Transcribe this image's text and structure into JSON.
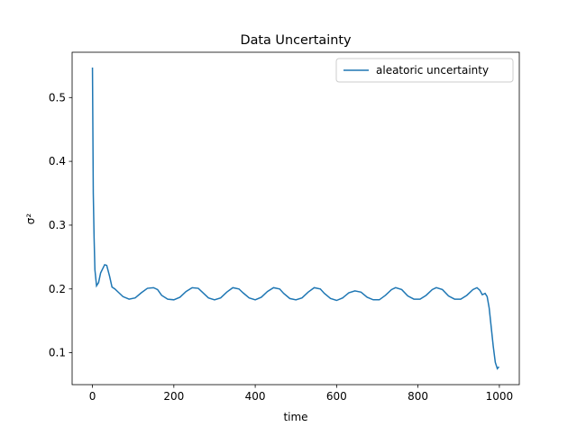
{
  "chart_data": {
    "type": "line",
    "title": "Data Uncertainty",
    "xlabel": "time",
    "ylabel": "σ²",
    "x": [
      0,
      2,
      4,
      6,
      10,
      15,
      20,
      30,
      35,
      42,
      48,
      55,
      65,
      75,
      90,
      105,
      120,
      135,
      150,
      160,
      170,
      185,
      200,
      215,
      230,
      245,
      260,
      270,
      285,
      300,
      315,
      330,
      345,
      360,
      370,
      385,
      400,
      415,
      430,
      445,
      460,
      470,
      485,
      500,
      515,
      530,
      545,
      560,
      570,
      585,
      600,
      615,
      630,
      645,
      660,
      675,
      690,
      705,
      720,
      735,
      745,
      760,
      775,
      790,
      805,
      820,
      835,
      845,
      860,
      875,
      890,
      905,
      920,
      935,
      945,
      952,
      958,
      965,
      970,
      975,
      980,
      985,
      990,
      995,
      999
    ],
    "series": [
      {
        "name": "aleatoric uncertainty",
        "color": "#1f77b4",
        "values": [
          0.547,
          0.35,
          0.28,
          0.23,
          0.205,
          0.21,
          0.225,
          0.238,
          0.237,
          0.22,
          0.203,
          0.2,
          0.194,
          0.188,
          0.184,
          0.186,
          0.194,
          0.201,
          0.202,
          0.199,
          0.19,
          0.184,
          0.183,
          0.187,
          0.196,
          0.202,
          0.201,
          0.195,
          0.186,
          0.183,
          0.186,
          0.195,
          0.202,
          0.2,
          0.194,
          0.186,
          0.183,
          0.187,
          0.196,
          0.202,
          0.2,
          0.193,
          0.185,
          0.183,
          0.186,
          0.195,
          0.202,
          0.2,
          0.193,
          0.185,
          0.182,
          0.186,
          0.194,
          0.197,
          0.195,
          0.187,
          0.183,
          0.183,
          0.19,
          0.199,
          0.202,
          0.199,
          0.189,
          0.184,
          0.184,
          0.19,
          0.199,
          0.202,
          0.199,
          0.189,
          0.184,
          0.184,
          0.19,
          0.199,
          0.202,
          0.198,
          0.191,
          0.193,
          0.188,
          0.17,
          0.14,
          0.11,
          0.085,
          0.075,
          0.078
        ]
      }
    ],
    "xlim": [
      -50,
      1049
    ],
    "ylim": [
      0.05,
      0.571
    ],
    "xticks": [
      0,
      200,
      400,
      600,
      800,
      1000
    ],
    "yticks": [
      0.1,
      0.2,
      0.3,
      0.4,
      0.5
    ],
    "legend": "upper right"
  }
}
